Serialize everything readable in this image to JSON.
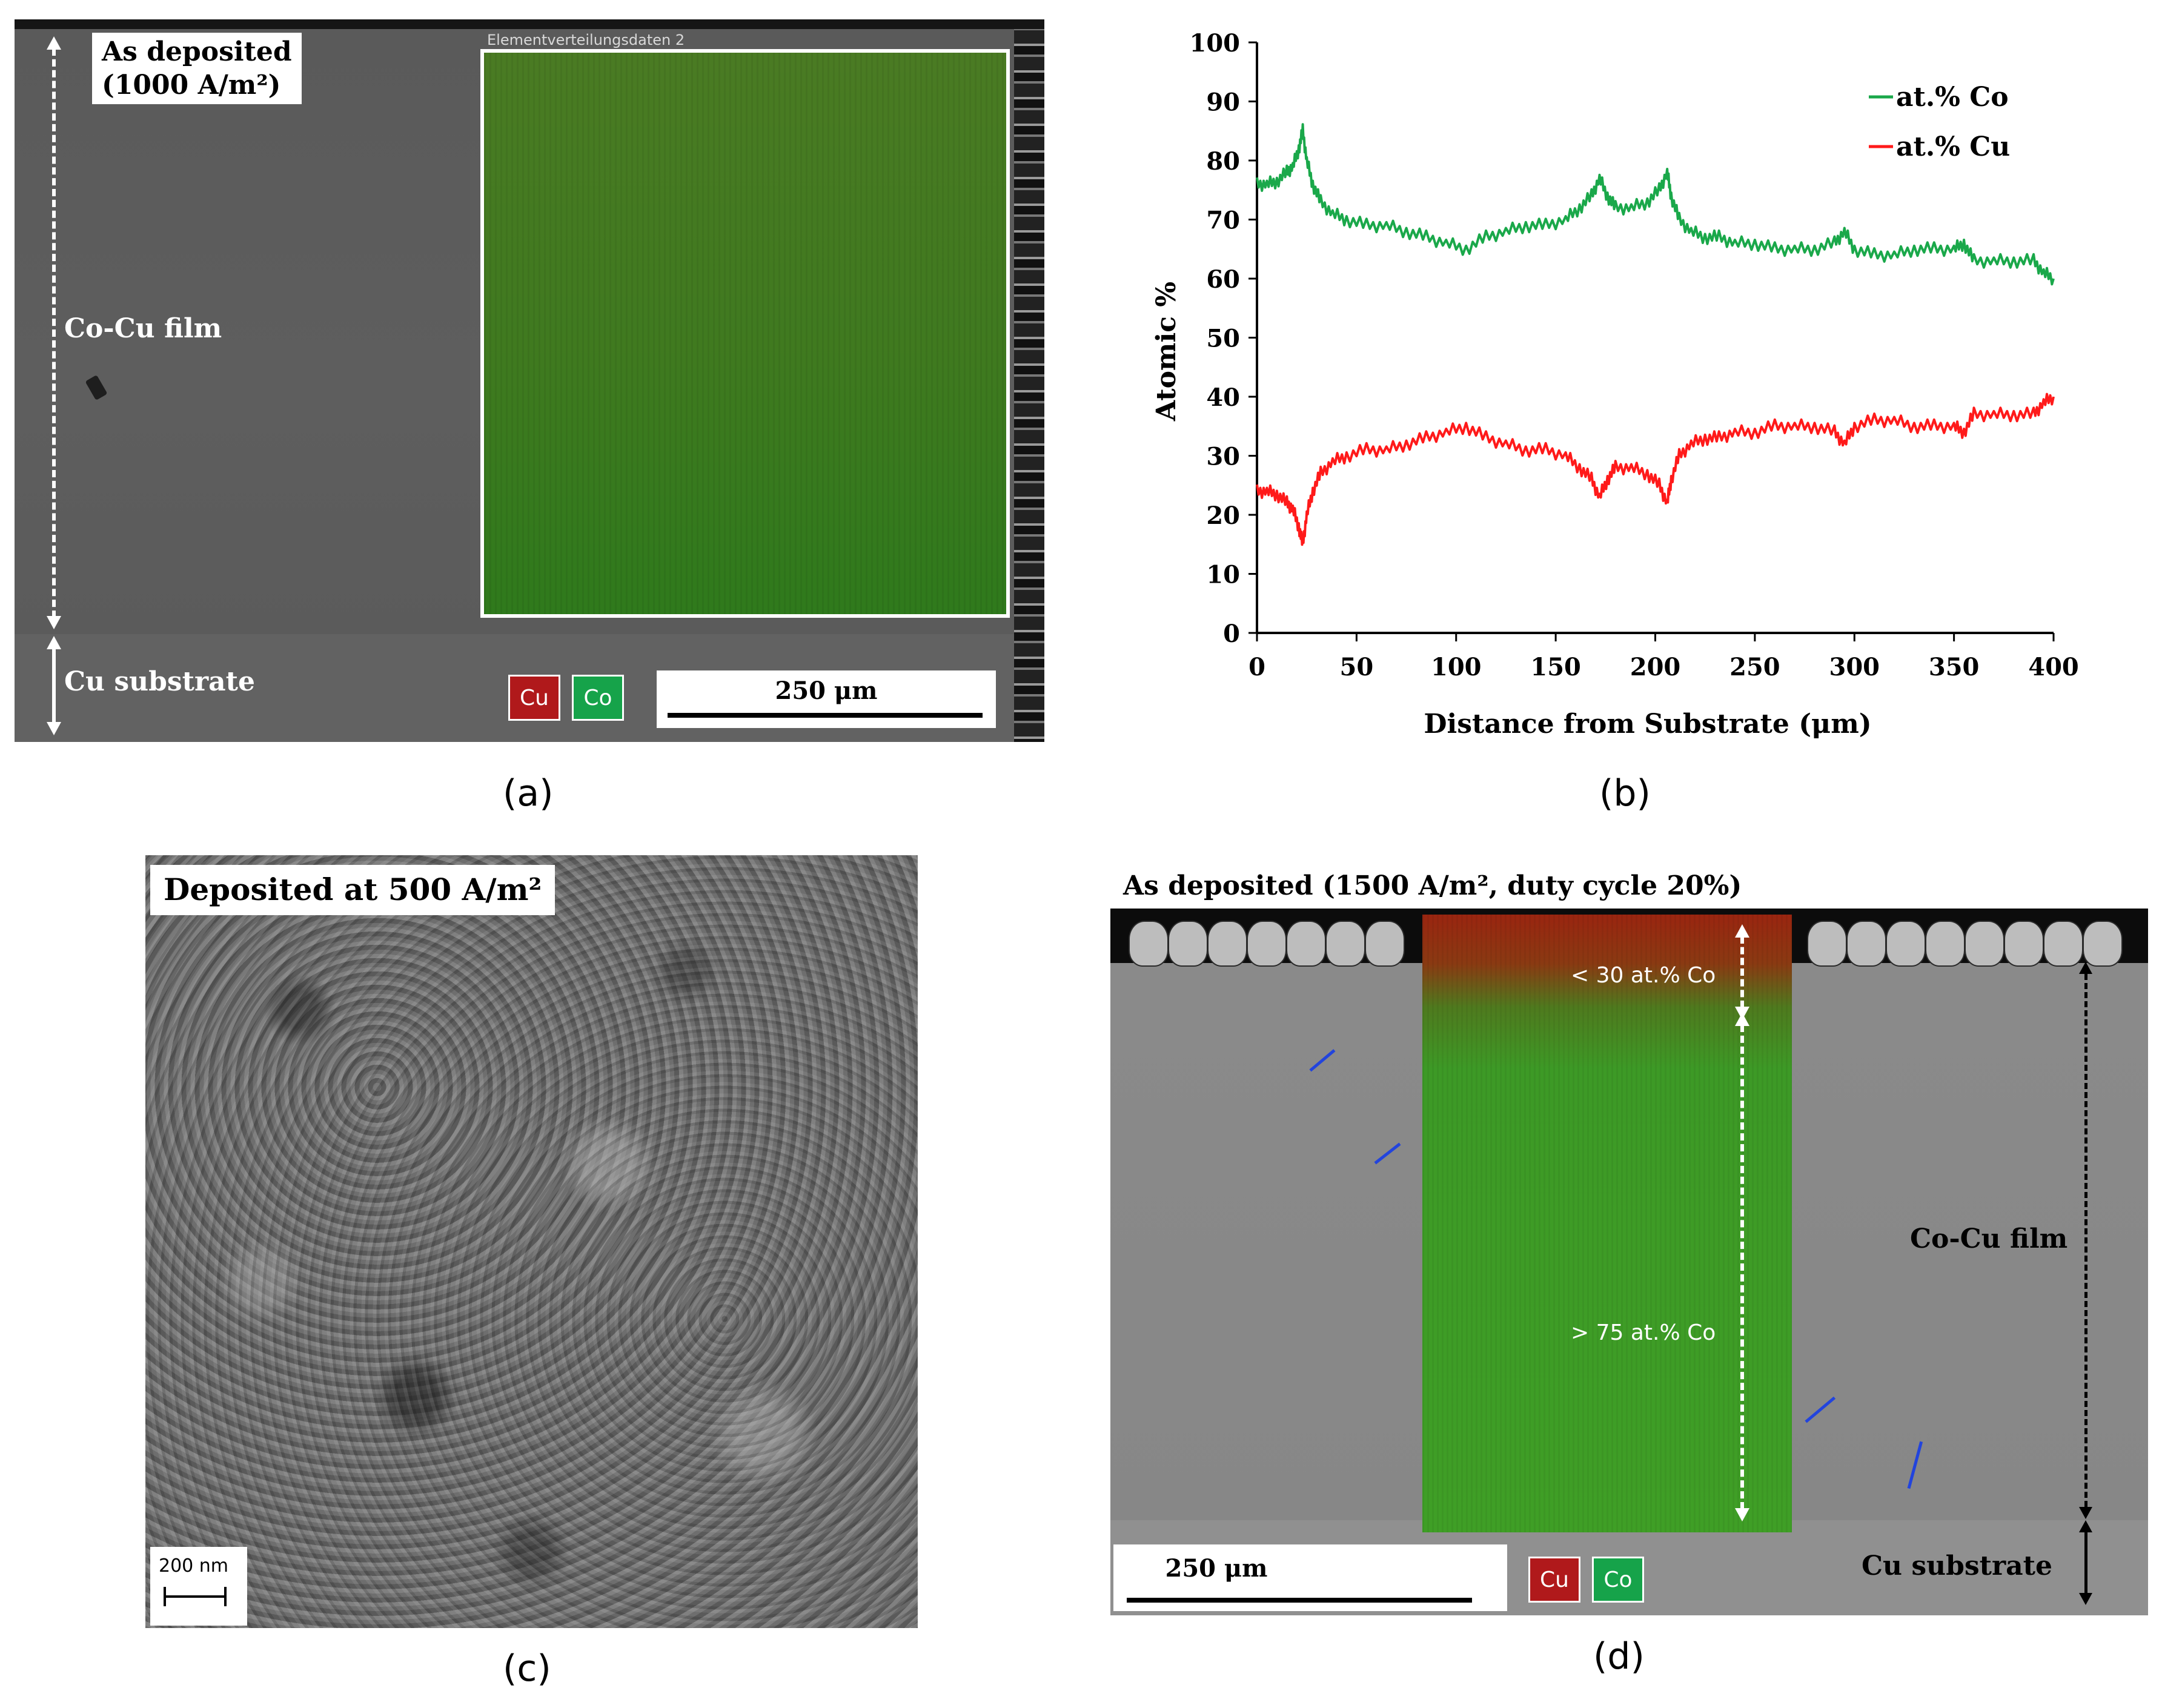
{
  "panel_a": {
    "map_title": "Elementverteilungsdaten 2",
    "label": "As deposited (1000 A/m²)",
    "label_line1": "As deposited",
    "label_line2": "(1000 A/m²)",
    "film_label": "Co-Cu film",
    "substrate_label": "Cu substrate",
    "legend": [
      "Cu",
      "Co"
    ],
    "scale_bar": "250 μm",
    "caption": "(a)"
  },
  "panel_b": {
    "caption": "(b)"
  },
  "panel_c": {
    "label": "Deposited at 500 A/m²",
    "scale_bar": "200 nm",
    "caption": "(c)"
  },
  "panel_d": {
    "title": "As deposited (1500 A/m², duty cycle 20%)",
    "low_co_label": "< 30 at.% Co",
    "high_co_label": "> 75 at.% Co",
    "film_label": "Co-Cu film",
    "substrate_label": "Cu substrate",
    "legend": [
      "Cu",
      "Co"
    ],
    "scale_bar": "250 μm",
    "caption": "(d)"
  },
  "colors": {
    "co": "#1aa84a",
    "cu": "#ff1a1a",
    "legend_cu": "#b0191b",
    "legend_co": "#16a34a"
  },
  "chart_data": {
    "type": "line",
    "title": "",
    "xlabel": "Distance from Substrate (μm)",
    "ylabel": "Atomic %",
    "xlim": [
      0,
      400
    ],
    "ylim": [
      0,
      100
    ],
    "xticks": [
      0,
      50,
      100,
      150,
      200,
      250,
      300,
      350,
      400
    ],
    "yticks": [
      0,
      10,
      20,
      30,
      40,
      50,
      60,
      70,
      80,
      90,
      100
    ],
    "legend_position": "top-right",
    "series": [
      {
        "name": "at.% Co",
        "color": "#1aa84a",
        "x": [
          0,
          5,
          10,
          15,
          18,
          21,
          23,
          25,
          28,
          32,
          38,
          45,
          55,
          65,
          75,
          85,
          95,
          105,
          115,
          125,
          135,
          145,
          155,
          162,
          168,
          172,
          176,
          180,
          188,
          196,
          202,
          206,
          208,
          212,
          218,
          225,
          232,
          240,
          250,
          260,
          270,
          280,
          290,
          295,
          300,
          310,
          320,
          330,
          340,
          350,
          355,
          360,
          370,
          380,
          390,
          395,
          400
        ],
        "y": [
          76,
          76,
          76.5,
          78,
          79,
          82,
          85,
          80,
          76,
          73,
          71,
          70,
          69,
          69,
          68,
          67,
          66,
          65,
          67,
          68,
          69,
          69,
          70,
          72,
          74,
          77,
          74,
          72,
          72,
          73,
          75,
          78,
          74,
          70,
          68,
          67,
          67,
          66,
          66,
          65,
          65,
          65,
          66,
          68,
          65,
          64,
          64,
          65,
          65,
          65,
          66,
          63,
          63,
          63,
          63,
          61,
          60
        ]
      },
      {
        "name": "at.% Cu",
        "color": "#ff1a1a",
        "x": [
          0,
          5,
          10,
          15,
          18,
          21,
          23,
          25,
          28,
          32,
          38,
          45,
          55,
          65,
          75,
          85,
          95,
          105,
          115,
          125,
          135,
          145,
          155,
          162,
          168,
          172,
          176,
          180,
          188,
          196,
          202,
          206,
          208,
          212,
          218,
          225,
          232,
          240,
          250,
          260,
          270,
          280,
          290,
          295,
          300,
          310,
          320,
          330,
          340,
          350,
          355,
          360,
          370,
          380,
          390,
          395,
          400
        ],
        "y": [
          24,
          24,
          23.5,
          22,
          21,
          18,
          15,
          20,
          24,
          27,
          29,
          30,
          31,
          31,
          32,
          33,
          34,
          35,
          33,
          32,
          31,
          31,
          30,
          28,
          26,
          23,
          26,
          28,
          28,
          27,
          25,
          22,
          26,
          30,
          32,
          33,
          33,
          34,
          34,
          35,
          35,
          35,
          34,
          32,
          35,
          36,
          36,
          35,
          35,
          35,
          34,
          37,
          37,
          37,
          37,
          39,
          40
        ]
      }
    ]
  }
}
